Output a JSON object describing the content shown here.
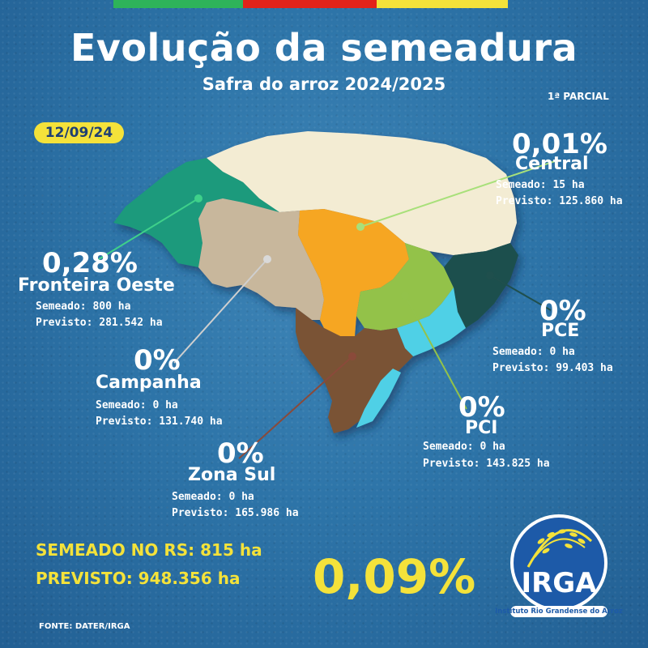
{
  "title": "Evolução da semeadura",
  "subtitle": "Safra do arroz 2024/2025",
  "parcial": "1ª PARCIAL",
  "date": "12/09/24",
  "colors": {
    "flag_green": "#2eb35a",
    "flag_red": "#e2231a",
    "flag_yellow": "#f4e23a",
    "central": "#f3ecd3",
    "fronteira_oeste": "#1a9a7c",
    "campanha": "#c8b79c",
    "zona_sul": "#7a5336",
    "pci": "#93c24a",
    "pce": "#1f4f4d",
    "orange": "#f6a624",
    "cyan": "#4fd0e6"
  },
  "regions": {
    "central": {
      "pct": "0,01%",
      "name": "Central",
      "semeado": "Semeado: 15 ha",
      "previsto": "Previsto: 125.860 ha"
    },
    "fronteira_oeste": {
      "pct": "0,28%",
      "name": "Fronteira Oeste",
      "semeado": "Semeado: 800 ha",
      "previsto": "Previsto: 281.542 ha"
    },
    "campanha": {
      "pct": "0%",
      "name": "Campanha",
      "semeado": "Semeado: 0 ha",
      "previsto": "Previsto: 131.740 ha"
    },
    "zona_sul": {
      "pct": "0%",
      "name": "Zona Sul",
      "semeado": "Semeado: 0 ha",
      "previsto": "Previsto: 165.986 ha"
    },
    "pci": {
      "pct": "0%",
      "name": "PCI",
      "semeado": "Semeado: 0 ha",
      "previsto": "Previsto: 143.825 ha"
    },
    "pce": {
      "pct": "0%",
      "name": "PCE",
      "semeado": "Semeado: 0 ha",
      "previsto": "Previsto: 99.403 ha"
    }
  },
  "totals": {
    "semeado": "SEMEADO NO RS: 815 ha",
    "previsto": "PREVISTO: 948.356 ha",
    "pct": "0,09%"
  },
  "logo": {
    "text": "IRGA",
    "subtext": "Instituto Rio Grandense do Arroz"
  },
  "fonte": "FONTE: DATER/IRGA"
}
